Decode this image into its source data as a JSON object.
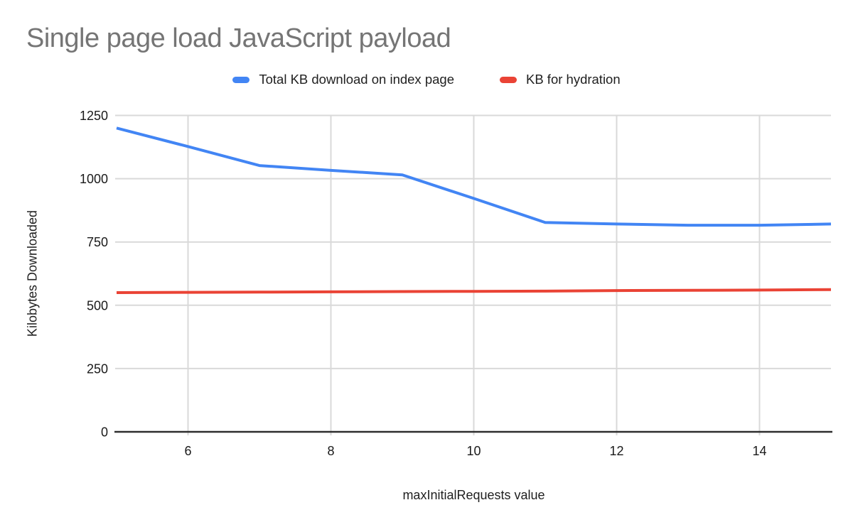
{
  "page": {
    "background": "#ffffff"
  },
  "chart_data": {
    "type": "line",
    "title": "Single page load JavaScript payload",
    "xlabel": "maxInitialRequests value",
    "ylabel": "Kilobytes Downloaded",
    "x": [
      5,
      6,
      7,
      8,
      9,
      10,
      11,
      12,
      13,
      14,
      15
    ],
    "series": [
      {
        "name": "Total KB download on index page",
        "color": "#4285f4",
        "values": [
          1200,
          1127,
          1052,
          1033,
          1015,
          922,
          827,
          821,
          816,
          816,
          821
        ]
      },
      {
        "name": "KB for hydration",
        "color": "#ea4335",
        "values": [
          550,
          551,
          552,
          553,
          554,
          555,
          556,
          558,
          559,
          560,
          562
        ]
      }
    ],
    "xlim": [
      5,
      15
    ],
    "ylim": [
      0,
      1250
    ],
    "xticks": [
      6,
      8,
      10,
      12,
      14
    ],
    "yticks": [
      0,
      250,
      500,
      750,
      1000,
      1250
    ],
    "grid": true,
    "legend_position": "top",
    "colors": {
      "grid": "#d9d9d9",
      "axis": "#2e2e2e",
      "tick_label": "#1a1a1a",
      "title": "#757575"
    }
  }
}
